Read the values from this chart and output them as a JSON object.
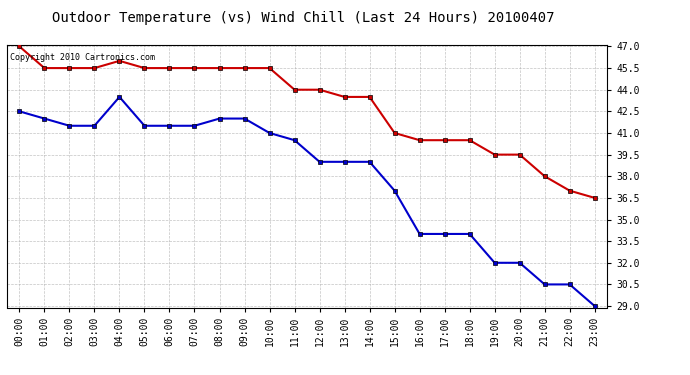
{
  "title": "Outdoor Temperature (vs) Wind Chill (Last 24 Hours) 20100407",
  "copyright": "Copyright 2010 Cartronics.com",
  "x_labels": [
    "00:00",
    "01:00",
    "02:00",
    "03:00",
    "04:00",
    "05:00",
    "06:00",
    "07:00",
    "08:00",
    "09:00",
    "10:00",
    "11:00",
    "12:00",
    "13:00",
    "14:00",
    "15:00",
    "16:00",
    "17:00",
    "18:00",
    "19:00",
    "20:00",
    "21:00",
    "22:00",
    "23:00"
  ],
  "temp_red": [
    47.0,
    45.5,
    45.5,
    45.5,
    46.0,
    45.5,
    45.5,
    45.5,
    45.5,
    45.5,
    45.5,
    44.0,
    44.0,
    43.5,
    43.5,
    41.0,
    40.5,
    40.5,
    40.5,
    39.5,
    39.5,
    38.0,
    37.0,
    36.5
  ],
  "temp_blue": [
    42.5,
    42.0,
    41.5,
    41.5,
    43.5,
    41.5,
    41.5,
    41.5,
    42.0,
    42.0,
    41.0,
    40.5,
    39.0,
    39.0,
    39.0,
    37.0,
    34.0,
    34.0,
    34.0,
    32.0,
    32.0,
    30.5,
    30.5,
    29.0
  ],
  "ylim_min": 29.0,
  "ylim_max": 47.0,
  "yticks": [
    29.0,
    30.5,
    32.0,
    33.5,
    35.0,
    36.5,
    38.0,
    39.5,
    41.0,
    42.5,
    44.0,
    45.5,
    47.0
  ],
  "red_color": "#cc0000",
  "blue_color": "#0000cc",
  "grid_color": "#aaaaaa",
  "bg_color": "#ffffff",
  "plot_bg_color": "#ffffff",
  "title_fontsize": 10,
  "tick_fontsize": 7,
  "copyright_fontsize": 6
}
